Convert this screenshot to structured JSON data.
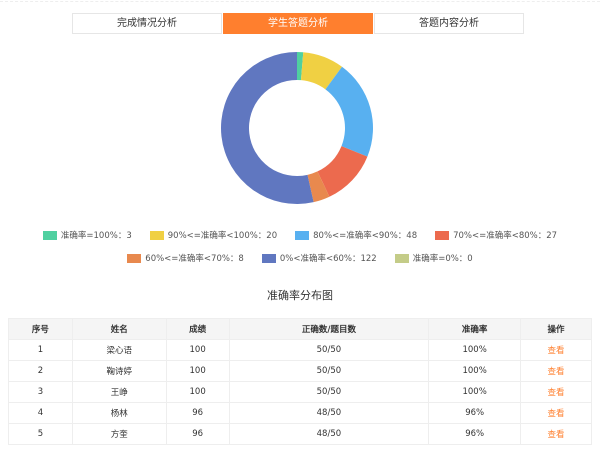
{
  "tabs": [
    {
      "label": "完成情况分析"
    },
    {
      "label": "学生答题分析",
      "active": true
    },
    {
      "label": "答题内容分析"
    }
  ],
  "chart_data": {
    "type": "pie",
    "variant": "donut",
    "title": "准确率分布图",
    "slices": [
      {
        "label": "准确率=100%",
        "value": 3,
        "color": "#4fd0a0"
      },
      {
        "label": "90%<=准确率<100%",
        "value": 20,
        "color": "#f0d043"
      },
      {
        "label": "80%<=准确率<90%",
        "value": 48,
        "color": "#58b0f0"
      },
      {
        "label": "70%<=准确率<80%",
        "value": 27,
        "color": "#ec6a4e"
      },
      {
        "label": "60%<=准确率<70%",
        "value": 8,
        "color": "#e8894e"
      },
      {
        "label": "0%<准确率<60%",
        "value": 122,
        "color": "#6077c0"
      },
      {
        "label": "准确率=0%",
        "value": 0,
        "color": "#c4cc88"
      }
    ],
    "legend_texts": [
      "准确率=100%：3",
      "90%<=准确率<100%：20",
      "80%<=准确率<90%：48",
      "70%<=准确率<80%：27",
      "60%<=准确率<70%：8",
      "0%<准确率<60%：122",
      "准确率=0%：0"
    ],
    "legend_position": "bottom"
  },
  "table": {
    "headers": [
      "序号",
      "姓名",
      "成绩",
      "正确数/题目数",
      "准确率",
      "操作"
    ],
    "rows": [
      [
        "1",
        "梁心语",
        "100",
        "50/50",
        "100%",
        "查看"
      ],
      [
        "2",
        "鞠诗婷",
        "100",
        "50/50",
        "100%",
        "查看"
      ],
      [
        "3",
        "王峥",
        "100",
        "50/50",
        "100%",
        "查看"
      ],
      [
        "4",
        "杨林",
        "96",
        "48/50",
        "96%",
        "查看"
      ],
      [
        "5",
        "方奎",
        "96",
        "48/50",
        "96%",
        "查看"
      ]
    ]
  }
}
